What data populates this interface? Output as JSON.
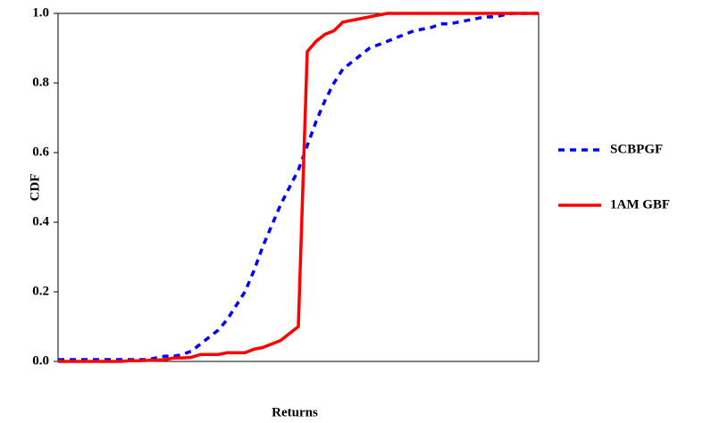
{
  "chart_data": {
    "type": "line",
    "x_label": "Returns",
    "y_label": "CDF",
    "ylim": [
      0,
      1
    ],
    "yticks": [
      {
        "value": 0,
        "label": "0.0"
      },
      0.2,
      0.4,
      0.6,
      0.8,
      {
        "value": 1,
        "label": "1.0"
      }
    ],
    "series": [
      {
        "name": "SCBPGF",
        "color": "#0000ff",
        "dash": "dashed",
        "values": [
          0.005,
          0.005,
          0.005,
          0.005,
          0.005,
          0.005,
          0.005,
          0.005,
          0.005,
          0.005,
          0.005,
          0.01,
          0.015,
          0.015,
          0.02,
          0.03,
          0.05,
          0.07,
          0.09,
          0.12,
          0.16,
          0.2,
          0.26,
          0.33,
          0.39,
          0.45,
          0.5,
          0.55,
          0.62,
          0.69,
          0.75,
          0.8,
          0.84,
          0.86,
          0.88,
          0.9,
          0.91,
          0.92,
          0.93,
          0.94,
          0.95,
          0.955,
          0.96,
          0.97,
          0.97,
          0.975,
          0.98,
          0.985,
          0.99,
          0.99,
          0.995,
          1,
          1,
          1,
          1
        ]
      },
      {
        "name": "1AM GBF",
        "color": "#ff0000",
        "dash": "solid",
        "values": [
          0,
          0,
          0,
          0,
          0,
          0,
          0,
          0,
          0.002,
          0.002,
          0.003,
          0.004,
          0.005,
          0.01,
          0.01,
          0.012,
          0.02,
          0.02,
          0.02,
          0.025,
          0.025,
          0.025,
          0.035,
          0.04,
          0.05,
          0.06,
          0.08,
          0.1,
          0.89,
          0.92,
          0.94,
          0.95,
          0.975,
          0.98,
          0.985,
          0.99,
          0.995,
          1,
          1,
          1,
          1,
          1,
          1,
          1,
          1,
          1,
          1,
          1,
          1,
          1,
          1,
          1,
          1,
          1,
          1
        ]
      }
    ]
  }
}
